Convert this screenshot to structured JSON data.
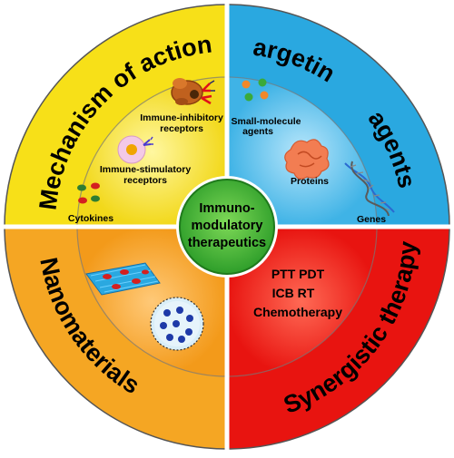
{
  "center": {
    "lines": [
      "Immuno-",
      "modulatory",
      "therapeutics"
    ]
  },
  "quadrants": {
    "mechanism": {
      "title": "Mechanism of action",
      "color": "#f7e018",
      "labels": {
        "inhibitory": [
          "Immune-inhibitory",
          "receptors"
        ],
        "stimulatory": [
          "Immune-stimulatory",
          "receptors"
        ],
        "cytokines": "Cytokines"
      }
    },
    "targeting": {
      "title_line1": "Targeting",
      "title_line2": "agents",
      "color": "#2aa8e0",
      "labels": {
        "small_molecule": [
          "Small-molecule",
          "agents"
        ],
        "proteins": "Proteins",
        "genes": "Genes"
      }
    },
    "nanomaterials": {
      "title": "Nanomaterials",
      "color": "#f5a623"
    },
    "synergistic": {
      "title": "Synergistic therapy",
      "color": "#e81410",
      "therapies": [
        "PTT  PDT",
        "ICB   RT",
        "Chemotherapy"
      ]
    }
  }
}
